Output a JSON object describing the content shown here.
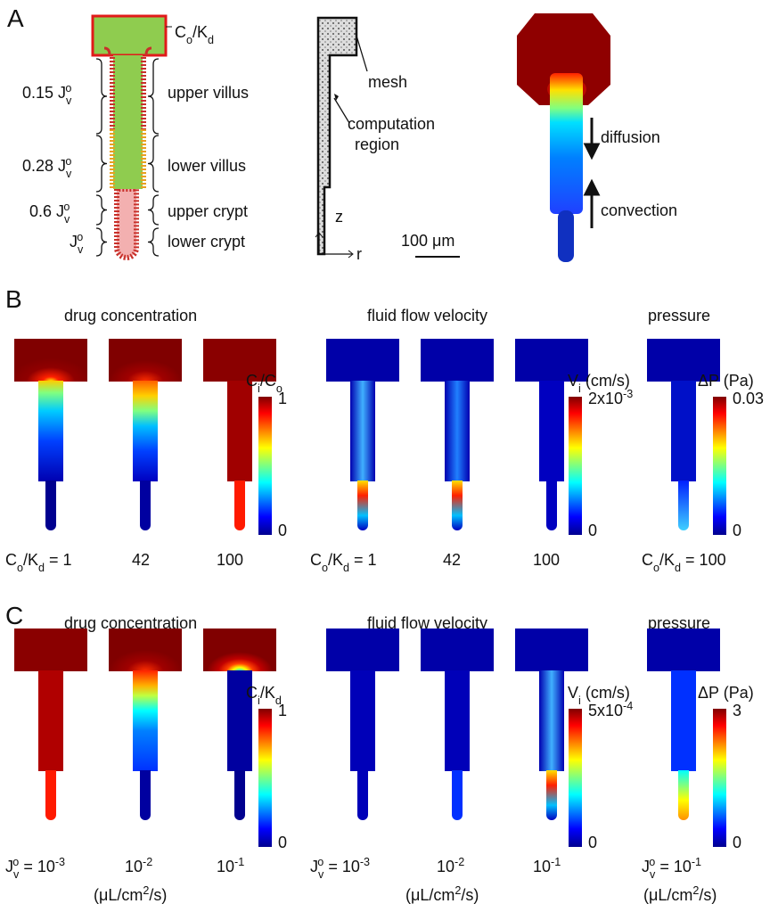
{
  "panel_a": {
    "label": "A",
    "boundary_label": [
      "C",
      {
        "sub": "o"
      },
      "/K",
      {
        "sub": "d"
      }
    ],
    "flux_labels": [
      [
        "0.15 J",
        {
          "sub": "v"
        },
        {
          "sup": "o"
        }
      ],
      [
        "0.28 J",
        {
          "sub": "v"
        },
        {
          "sup": "o"
        }
      ],
      [
        "0.6 J",
        {
          "sub": "v"
        },
        {
          "sup": "o"
        }
      ],
      [
        "J",
        {
          "sub": "v"
        },
        {
          "sup": "o"
        }
      ]
    ],
    "region_labels": [
      "upper villus",
      "lower villus",
      "upper crypt",
      "lower crypt"
    ],
    "mesh_label": "mesh",
    "computation_label": [
      "computation",
      "region"
    ],
    "axis_labels": [
      "z",
      "r"
    ],
    "scale_bar": "100 μm",
    "arrow_labels": [
      "diffusion",
      "convection"
    ]
  },
  "panel_b": {
    "label": "B",
    "titles": [
      "drug concentration",
      "fluid flow velocity",
      "pressure"
    ],
    "colorbars": [
      {
        "label": [
          "C",
          {
            "sub": "i"
          },
          "/C",
          {
            "sub": "o"
          }
        ],
        "max": [
          "1"
        ],
        "min": [
          "0"
        ]
      },
      {
        "label": [
          "V",
          {
            "sub": "i"
          },
          " (cm/s)"
        ],
        "max": [
          "2x10",
          {
            "sup": "-3"
          }
        ],
        "min": [
          "0"
        ]
      },
      {
        "label": [
          "ΔP (Pa)"
        ],
        "max": [
          "0.03"
        ],
        "min": [
          "0"
        ]
      }
    ],
    "case_labels": [
      [
        "C",
        {
          "sub": "o"
        },
        "/K",
        {
          "sub": "d"
        },
        " = 1"
      ],
      [
        "42"
      ],
      [
        "100"
      ],
      [
        "C",
        {
          "sub": "o"
        },
        "/K",
        {
          "sub": "d"
        },
        " = 1"
      ],
      [
        "42"
      ],
      [
        "100"
      ],
      [
        "C",
        {
          "sub": "o"
        },
        "/K",
        {
          "sub": "d"
        },
        " = 100"
      ]
    ]
  },
  "panel_c": {
    "label": "C",
    "titles": [
      "drug concentration",
      "fluid flow velocity",
      "pressure"
    ],
    "colorbars": [
      {
        "label": [
          "C",
          {
            "sub": "i"
          },
          "/K",
          {
            "sub": "d"
          }
        ],
        "max": [
          "1"
        ],
        "min": [
          "0"
        ]
      },
      {
        "label": [
          "V",
          {
            "sub": "i"
          },
          " (cm/s)"
        ],
        "max": [
          "5x10",
          {
            "sup": "-4"
          }
        ],
        "min": [
          "0"
        ]
      },
      {
        "label": [
          "ΔP (Pa)"
        ],
        "max": [
          "3"
        ],
        "min": [
          "0"
        ]
      }
    ],
    "case_labels": [
      [
        "J",
        {
          "sub": "v"
        },
        {
          "sup": "o"
        },
        " = 10",
        {
          "sup": "-3"
        }
      ],
      [
        "10",
        {
          "sup": "-2"
        }
      ],
      [
        "10",
        {
          "sup": "-1"
        }
      ],
      [
        "J",
        {
          "sub": "v"
        },
        {
          "sup": "o"
        },
        " = 10",
        {
          "sup": "-3"
        }
      ],
      [
        "10",
        {
          "sup": "-2"
        }
      ],
      [
        "10",
        {
          "sup": "-1"
        }
      ],
      [
        "J",
        {
          "sub": "v"
        },
        {
          "sup": "o"
        },
        " = 10",
        {
          "sup": "-1"
        }
      ]
    ],
    "units": [
      [
        "(μL/cm",
        {
          "sup": "2"
        },
        "/s)"
      ],
      [
        "(μL/cm",
        {
          "sup": "2"
        },
        "/s)"
      ],
      [
        "(μL/cm",
        {
          "sup": "2"
        },
        "/s)"
      ]
    ]
  }
}
